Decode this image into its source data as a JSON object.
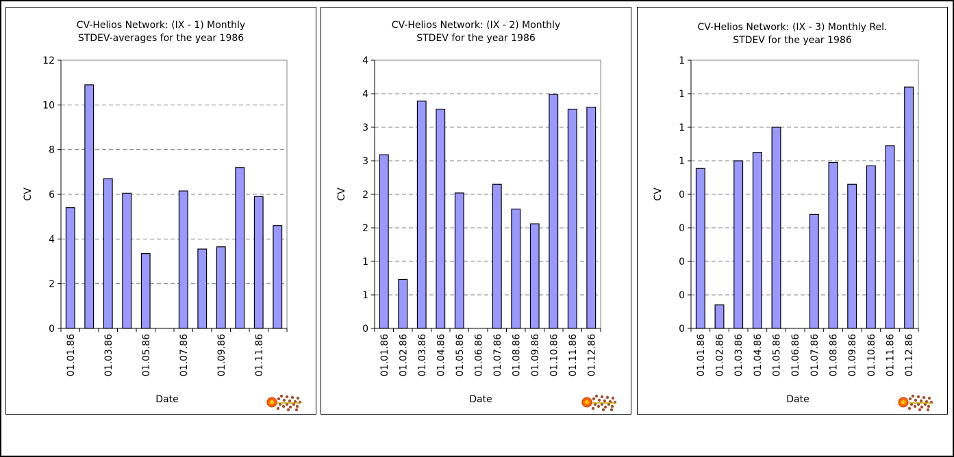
{
  "chart_data": [
    {
      "type": "bar",
      "title_lines": [
        "CV-Helios Network:  (IX - 1) Monthly",
        "STDEV-averages for the year 1986"
      ],
      "xlabel": "Date",
      "ylabel": "CV",
      "ylim": [
        0,
        12
      ],
      "y_ticks": [
        0,
        2,
        4,
        6,
        8,
        10,
        12
      ],
      "y_tick_labels": [
        "0",
        "2",
        "4",
        "6",
        "8",
        "10",
        "12"
      ],
      "grid": true,
      "bar_color": "#9999ff",
      "categories": [
        "01.01.86",
        "01.02.86",
        "01.03.86",
        "01.04.86",
        "01.05.86",
        "01.06.86",
        "01.07.86",
        "01.08.86",
        "01.09.86",
        "01.10.86",
        "01.11.86",
        "01.12.86"
      ],
      "x_tick_labels": [
        "01.01.86",
        "",
        "01.03.86",
        "",
        "01.05.86",
        "",
        "01.07.86",
        "",
        "01.09.86",
        "",
        "01.11.86",
        ""
      ],
      "values": [
        5.4,
        10.9,
        6.7,
        6.05,
        3.35,
        null,
        6.15,
        3.55,
        3.65,
        7.2,
        5.9,
        4.6
      ]
    },
    {
      "type": "bar",
      "title_lines": [
        "CV-Helios Network:  (IX - 2) Monthly",
        "STDEV for the year 1986"
      ],
      "xlabel": "Date",
      "ylabel": "CV",
      "ylim": [
        0,
        4
      ],
      "y_ticks": [
        0,
        0.5,
        1,
        1.5,
        2,
        2.5,
        3,
        3.5,
        4
      ],
      "y_tick_labels": [
        "0",
        "1",
        "1",
        "2",
        "2",
        "3",
        "3",
        "4",
        "4"
      ],
      "grid": true,
      "bar_color": "#9999ff",
      "categories": [
        "01.01.86",
        "01.02.86",
        "01.03.86",
        "01.04.86",
        "01.05.86",
        "01.06.86",
        "01.07.86",
        "01.08.86",
        "01.09.86",
        "01.10.86",
        "01.11.86",
        "01.12.86"
      ],
      "x_tick_labels": [
        "01.01.86",
        "01.02.86",
        "01.03.86",
        "01.04.86",
        "01.05.86",
        "01.06.86",
        "01.07.86",
        "01.08.86",
        "01.09.86",
        "01.10.86",
        "01.11.86",
        "01.12.86"
      ],
      "values": [
        2.59,
        0.73,
        3.39,
        3.27,
        2.02,
        null,
        2.15,
        1.78,
        1.56,
        3.49,
        3.27,
        3.3
      ]
    },
    {
      "type": "bar",
      "title_lines": [
        "CV-Helios Network:  (IX - 3) Monthly Rel.",
        "STDEV for the year 1986"
      ],
      "xlabel": "Date",
      "ylabel": "CV",
      "ylim": [
        0,
        0.8
      ],
      "y_ticks": [
        0,
        0.1,
        0.2,
        0.3,
        0.4,
        0.5,
        0.6,
        0.7,
        0.8
      ],
      "y_tick_labels": [
        "0",
        "0",
        "0",
        "0",
        "0",
        "1",
        "1",
        "1",
        "1"
      ],
      "grid": true,
      "bar_color": "#9999ff",
      "categories": [
        "01.01.86",
        "01.02.86",
        "01.03.86",
        "01.04.86",
        "01.05.86",
        "01.06.86",
        "01.07.86",
        "01.08.86",
        "01.09.86",
        "01.10.86",
        "01.11.86",
        "01.12.86"
      ],
      "x_tick_labels": [
        "01.01.86",
        "01.02.86",
        "01.03.86",
        "01.04.86",
        "01.05.86",
        "01.06.86",
        "01.07.86",
        "01.08.86",
        "01.09.86",
        "01.10.86",
        "01.11.86",
        "01.12.86"
      ],
      "values": [
        0.477,
        0.07,
        0.5,
        0.525,
        0.6,
        null,
        0.34,
        0.495,
        0.43,
        0.485,
        0.545,
        0.72
      ]
    }
  ]
}
